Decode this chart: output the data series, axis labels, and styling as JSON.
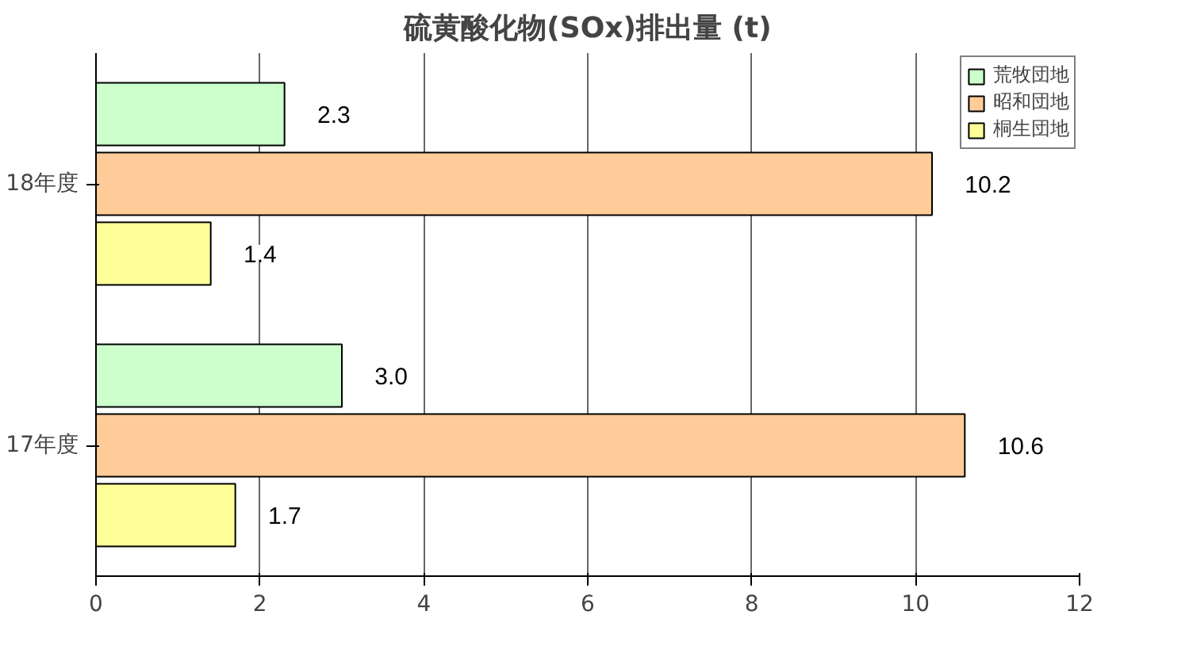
{
  "chart_data": {
    "type": "bar",
    "orientation": "horizontal",
    "title": "硫黄酸化物(SOx)排出量 (t)",
    "categories": [
      "18年度",
      "17年度"
    ],
    "series": [
      {
        "name": "荒牧団地",
        "color": "#ccffcc",
        "values": [
          2.3,
          3.0
        ]
      },
      {
        "name": "昭和団地",
        "color": "#ffcc99",
        "values": [
          10.2,
          10.6
        ]
      },
      {
        "name": "桐生団地",
        "color": "#ffff99",
        "values": [
          1.4,
          1.7
        ]
      }
    ],
    "value_labels": [
      [
        "2.3",
        "3.0"
      ],
      [
        "10.2",
        "10.6"
      ],
      [
        "1.4",
        "1.7"
      ]
    ],
    "xlim": [
      0,
      12
    ],
    "xticks": [
      0,
      2,
      4,
      6,
      8,
      10,
      12
    ],
    "grid": "x",
    "legend": "top right"
  }
}
